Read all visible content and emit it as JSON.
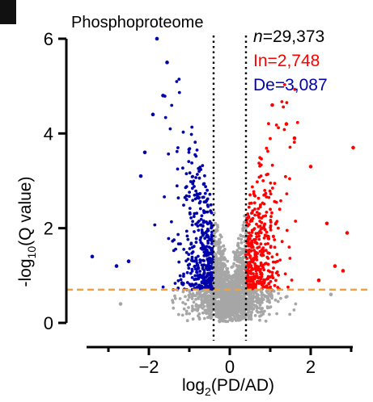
{
  "panel": {
    "marker": ""
  },
  "chart_data": {
    "type": "scatter",
    "title": "Phosphoproteome",
    "xlabel": {
      "main": "log",
      "sub": "2",
      "rest": "(PD/AD)"
    },
    "ylabel": {
      "main": "-log",
      "sub": "10",
      "rest": "(Q value)"
    },
    "xlim": [
      -3.5,
      3.2
    ],
    "ylim": [
      0,
      6
    ],
    "x_ticks": [
      -2,
      0,
      2
    ],
    "x_minor_ticks": [
      -3,
      -1,
      1,
      3
    ],
    "y_ticks": [
      0,
      2,
      4,
      6
    ],
    "fc_thresholds": [
      -0.4,
      0.4
    ],
    "q_threshold_log": 0.7,
    "legend": {
      "total": {
        "italic": "n",
        "text": "=29,373"
      },
      "increased": "In=2,748",
      "decreased": "De=3,087"
    },
    "colors": {
      "increased": "#ff0000",
      "decreased": "#0000aa",
      "nonsignificant": "#a6a6a6",
      "threshold_line": "#f0a040",
      "axis": "#000000"
    },
    "outlier_points": [
      {
        "x": -1.8,
        "y": 6.0,
        "group": "decreased"
      },
      {
        "x": -1.55,
        "y": 5.5,
        "group": "decreased"
      },
      {
        "x": -1.65,
        "y": 4.8,
        "group": "decreased"
      },
      {
        "x": -1.9,
        "y": 4.4,
        "group": "decreased"
      },
      {
        "x": -2.1,
        "y": 3.6,
        "group": "decreased"
      },
      {
        "x": -2.2,
        "y": 3.1,
        "group": "decreased"
      },
      {
        "x": -3.4,
        "y": 1.4,
        "group": "decreased"
      },
      {
        "x": -2.8,
        "y": 1.2,
        "group": "decreased"
      },
      {
        "x": -2.5,
        "y": 1.3,
        "group": "decreased"
      },
      {
        "x": -2.7,
        "y": 0.4,
        "group": "nonsignificant"
      },
      {
        "x": 1.05,
        "y": 4.6,
        "group": "increased"
      },
      {
        "x": 1.4,
        "y": 4.2,
        "group": "increased"
      },
      {
        "x": 1.6,
        "y": 3.9,
        "group": "increased"
      },
      {
        "x": 3.05,
        "y": 3.7,
        "group": "increased"
      },
      {
        "x": 2.0,
        "y": 3.3,
        "group": "increased"
      },
      {
        "x": 2.4,
        "y": 2.1,
        "group": "increased"
      },
      {
        "x": 2.9,
        "y": 1.9,
        "group": "increased"
      },
      {
        "x": 2.6,
        "y": 1.2,
        "group": "increased"
      },
      {
        "x": 2.2,
        "y": 0.9,
        "group": "increased"
      },
      {
        "x": 2.8,
        "y": 1.1,
        "group": "increased"
      },
      {
        "x": 2.5,
        "y": 0.6,
        "group": "nonsignificant"
      }
    ]
  }
}
